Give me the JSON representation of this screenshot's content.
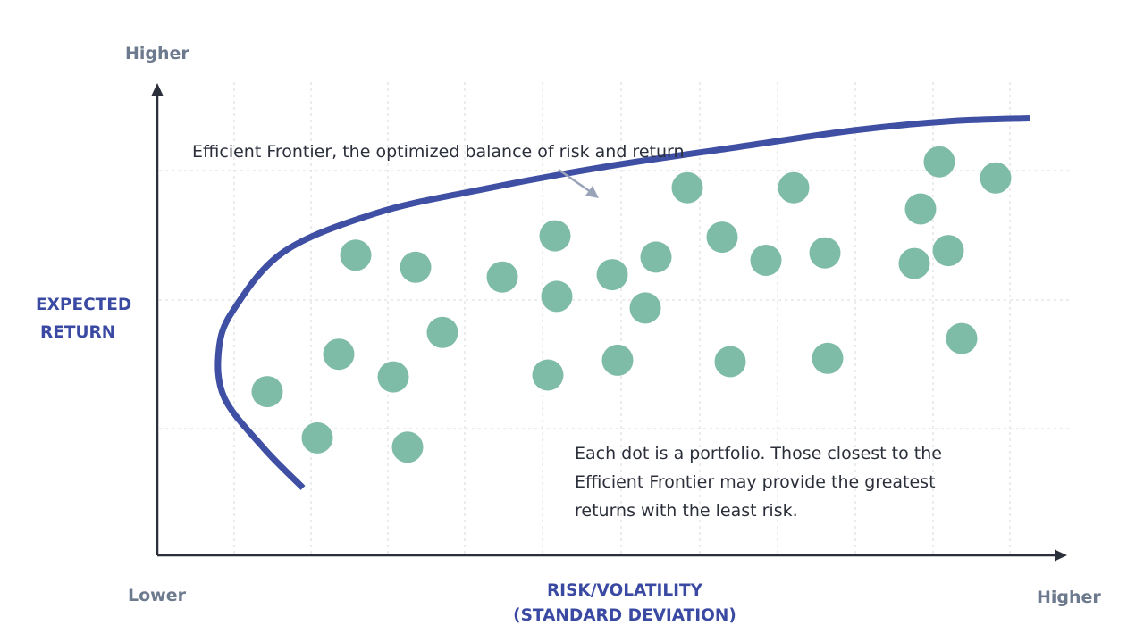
{
  "chart_data": {
    "type": "scatter",
    "title": "",
    "axis_labels": {
      "x_title_lines": [
        "RISK/VOLATILITY",
        "(STANDARD DEVIATION)"
      ],
      "y_title_lines": [
        "EXPECTED",
        "RETURN"
      ],
      "x_low": "Lower",
      "x_high": "Higher",
      "y_high": "Higher"
    },
    "xlim": [
      0,
      100
    ],
    "ylim": [
      0,
      100
    ],
    "grid": true,
    "colors": {
      "frontier": "#3f4fa3",
      "dots": "#7fbca7",
      "axis": "#2b2f3a",
      "grid": "#d6d9de",
      "axis_title": "#3a4aa3",
      "axis_end_label": "#6d7a8e",
      "annotation_arrow": "#9aa4b8"
    },
    "frontier": {
      "label": "Efficient Frontier, the optimized balance of risk and return",
      "points": [
        [
          16.3,
          14.6
        ],
        [
          12.0,
          23.0
        ],
        [
          7.5,
          34.1
        ],
        [
          6.9,
          44.7
        ],
        [
          8.6,
          53.3
        ],
        [
          14.2,
          65.7
        ],
        [
          24.5,
          74.0
        ],
        [
          36.0,
          79.0
        ],
        [
          50.0,
          84.0
        ],
        [
          65.0,
          88.3
        ],
        [
          77.9,
          91.9
        ],
        [
          88.8,
          93.9
        ],
        [
          97.6,
          94.5
        ]
      ]
    },
    "series": [
      {
        "points": [
          [
            12.3,
            35.4
          ],
          [
            17.9,
            25.4
          ],
          [
            20.3,
            43.5
          ],
          [
            22.2,
            64.9
          ],
          [
            26.4,
            38.6
          ],
          [
            28.0,
            23.4
          ],
          [
            28.9,
            62.3
          ],
          [
            31.9,
            48.2
          ],
          [
            38.6,
            60.2
          ],
          [
            43.7,
            39.0
          ],
          [
            44.5,
            69.1
          ],
          [
            44.7,
            56.0
          ],
          [
            50.9,
            60.7
          ],
          [
            51.5,
            42.2
          ],
          [
            54.6,
            53.5
          ],
          [
            55.8,
            64.5
          ],
          [
            59.3,
            79.5
          ],
          [
            63.2,
            68.8
          ],
          [
            64.1,
            41.9
          ],
          [
            68.1,
            63.8
          ],
          [
            71.2,
            79.5
          ],
          [
            74.7,
            65.4
          ],
          [
            75.0,
            42.6
          ],
          [
            84.7,
            63.1
          ],
          [
            85.4,
            74.9
          ],
          [
            87.5,
            85.1
          ],
          [
            88.5,
            65.9
          ],
          [
            90.0,
            46.9
          ],
          [
            93.8,
            81.6
          ]
        ]
      }
    ],
    "annotation": {
      "lines": [
        "Each dot is a portfolio. Those closest to the",
        "Efficient Frontier may provide the greatest",
        "returns with the least risk."
      ]
    }
  }
}
